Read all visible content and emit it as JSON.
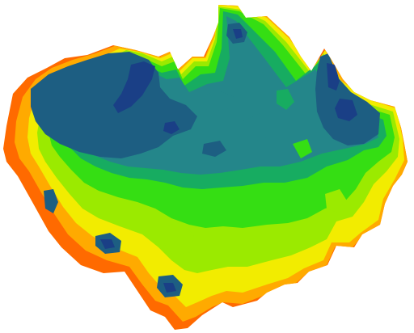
{
  "map": {
    "palette": {
      "band_1": "#1a3f86",
      "band_2": "#1d5e82",
      "band_3": "#24868a",
      "band_4": "#17ac61",
      "band_5": "#35de13",
      "band_6": "#9bea00",
      "band_7": "#f2ec00",
      "band_8": "#ffaa00",
      "band_9": "#ff6a00"
    }
  }
}
